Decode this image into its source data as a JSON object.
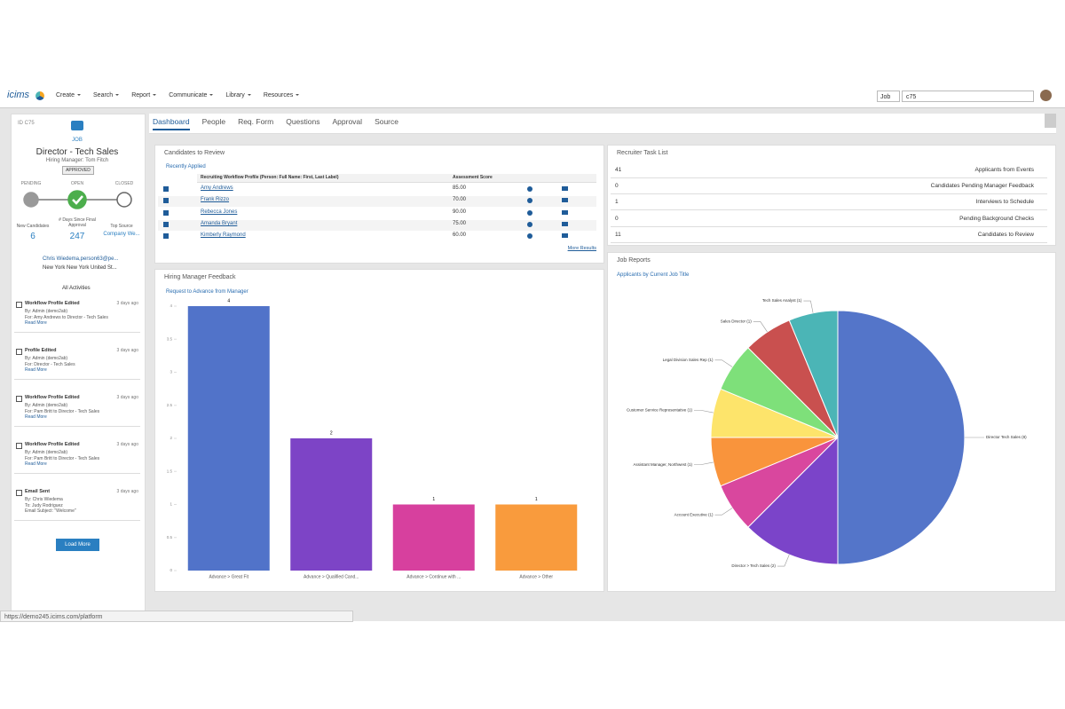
{
  "nav": {
    "logo": "icims",
    "menu": [
      "Create",
      "Search",
      "Report",
      "Communicate",
      "Library",
      "Resources"
    ],
    "search_type": "Job",
    "search_query": "c75"
  },
  "sidebar": {
    "id": "ID C75",
    "kind": "JOB",
    "title": "Director - Tech Sales",
    "subtitle": "Hiring Manager: Tom Fitch",
    "status": "APPROVED",
    "steps": [
      "PENDING",
      "OPEN",
      "CLOSED"
    ],
    "stats": [
      {
        "label": "New Candidates",
        "value": "6"
      },
      {
        "label": "# Days Since Final Approval",
        "value": "247"
      },
      {
        "label": "Top Source",
        "value": "Company We..."
      }
    ],
    "contact": "Chris Wiedema,person63@pe...",
    "location": "New York New York United St...",
    "activities_filter": "All Activities",
    "activities": [
      {
        "title": "Workflow Profile Edited",
        "time": "3 days ago",
        "lines": [
          "By: Admin (demo2ab)",
          "For: Amy Andrews to Director - Tech Sales",
          "Read More"
        ]
      },
      {
        "title": "Profile Edited",
        "time": "3 days ago",
        "lines": [
          "By: Admin (demo2ab)",
          "For: Director - Tech Sales",
          "Read More"
        ]
      },
      {
        "title": "Workflow Profile Edited",
        "time": "3 days ago",
        "lines": [
          "By: Admin (demo2ab)",
          "For: Pam Britt to Director - Tech Sales",
          "Read More"
        ]
      },
      {
        "title": "Workflow Profile Edited",
        "time": "3 days ago",
        "lines": [
          "By: Admin (demo2ab)",
          "For: Pam Britt to Director - Tech Sales",
          "Read More"
        ]
      },
      {
        "title": "Email Sent",
        "time": "3 days ago",
        "lines": [
          "By: Chris Wiedema",
          "To: Judy Rodriguez",
          "Email Subject: \"Welcome\""
        ]
      }
    ],
    "load_more": "Load More"
  },
  "tabs": [
    "Dashboard",
    "People",
    "Req. Form",
    "Questions",
    "Approval",
    "Source"
  ],
  "candidates": {
    "title": "Candidates to Review",
    "subtitle": "Recently Applied",
    "headers": [
      "Recruiting Workflow Profile (Person: Full Name: First, Last Label)",
      "Assessment Score"
    ],
    "rows": [
      [
        "Amy Andrews",
        "85.00"
      ],
      [
        "Frank Rizzo",
        "70.00"
      ],
      [
        "Rebecca Jones",
        "90.00"
      ],
      [
        "Amanda Bryant",
        "75.00"
      ],
      [
        "Kimberly Raymond",
        "60.00"
      ]
    ],
    "more": "More Results"
  },
  "tasks": {
    "title": "Recruiter Task List",
    "rows": [
      [
        "41",
        "Applicants from Events"
      ],
      [
        "0",
        "Candidates Pending Manager Feedback"
      ],
      [
        "1",
        "Interviews to Schedule"
      ],
      [
        "0",
        "Pending Background Checks"
      ],
      [
        "11",
        "Candidates to Review"
      ]
    ]
  },
  "chart_data": [
    {
      "type": "bar",
      "title": "Hiring Manager Feedback",
      "subtitle": "Request to Advance from Manager",
      "categories": [
        "Advance > Great Fit",
        "Advance > Qualified Cand...",
        "Advance > Continue with ...",
        "Advance > Other"
      ],
      "values": [
        4,
        2,
        1,
        1
      ],
      "colors": [
        "#5173c9",
        "#7d44c6",
        "#d7409e",
        "#f99b3d"
      ],
      "ylim": [
        0,
        4
      ],
      "yticks": [
        0,
        0.5,
        1,
        1.5,
        2,
        2.5,
        3,
        3.5,
        4
      ]
    },
    {
      "type": "pie",
      "title": "Job Reports",
      "subtitle": "Applicants by Current Job Title",
      "categories": [
        "Director Tech Sales (8)",
        "Director > Tech Sales (2)",
        "Account Executive (1)",
        "Assistant Manager, Northwest (1)",
        "Customer Service Representative (1)",
        "Legal Division Sales Rep (1)",
        "Sales Director (1)",
        "Tech Sales Analyst (1)"
      ],
      "values": [
        8,
        2,
        1,
        1,
        1,
        1,
        1,
        1
      ],
      "colors": [
        "#5475c9",
        "#7b44c9",
        "#d9479e",
        "#f9943c",
        "#fde46b",
        "#7ee07a",
        "#c9504f",
        "#4bb5b6"
      ]
    }
  ],
  "status_url": "https://demo245.icims.com/platform"
}
